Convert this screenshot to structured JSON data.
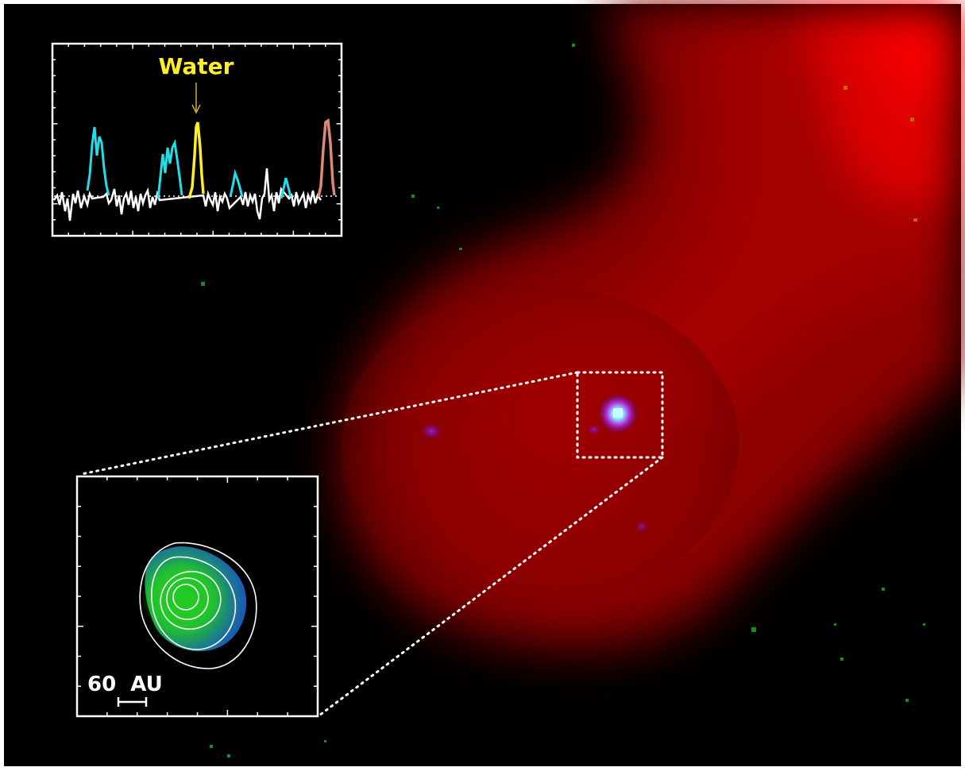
{
  "spectrum_inset": {
    "line_label": "Water",
    "line_label_color": "#ffee22",
    "colors": {
      "other_lines": "#22dde8",
      "water_line": "#ffee22",
      "salmon_line": "#e08878",
      "continuum": "#ffffff"
    }
  },
  "zoom_inset": {
    "scale_bar_label": "60  AU",
    "colors": {
      "core": "#22cc22",
      "edge": "#1133cc",
      "contours": "#ffffff"
    }
  },
  "background": {
    "colors": {
      "sky": "#000000",
      "cloud_bright": "#ff0000",
      "cloud_dim": "#5a0000",
      "source": "#a8ffff",
      "halo": "#9a22cc"
    }
  }
}
